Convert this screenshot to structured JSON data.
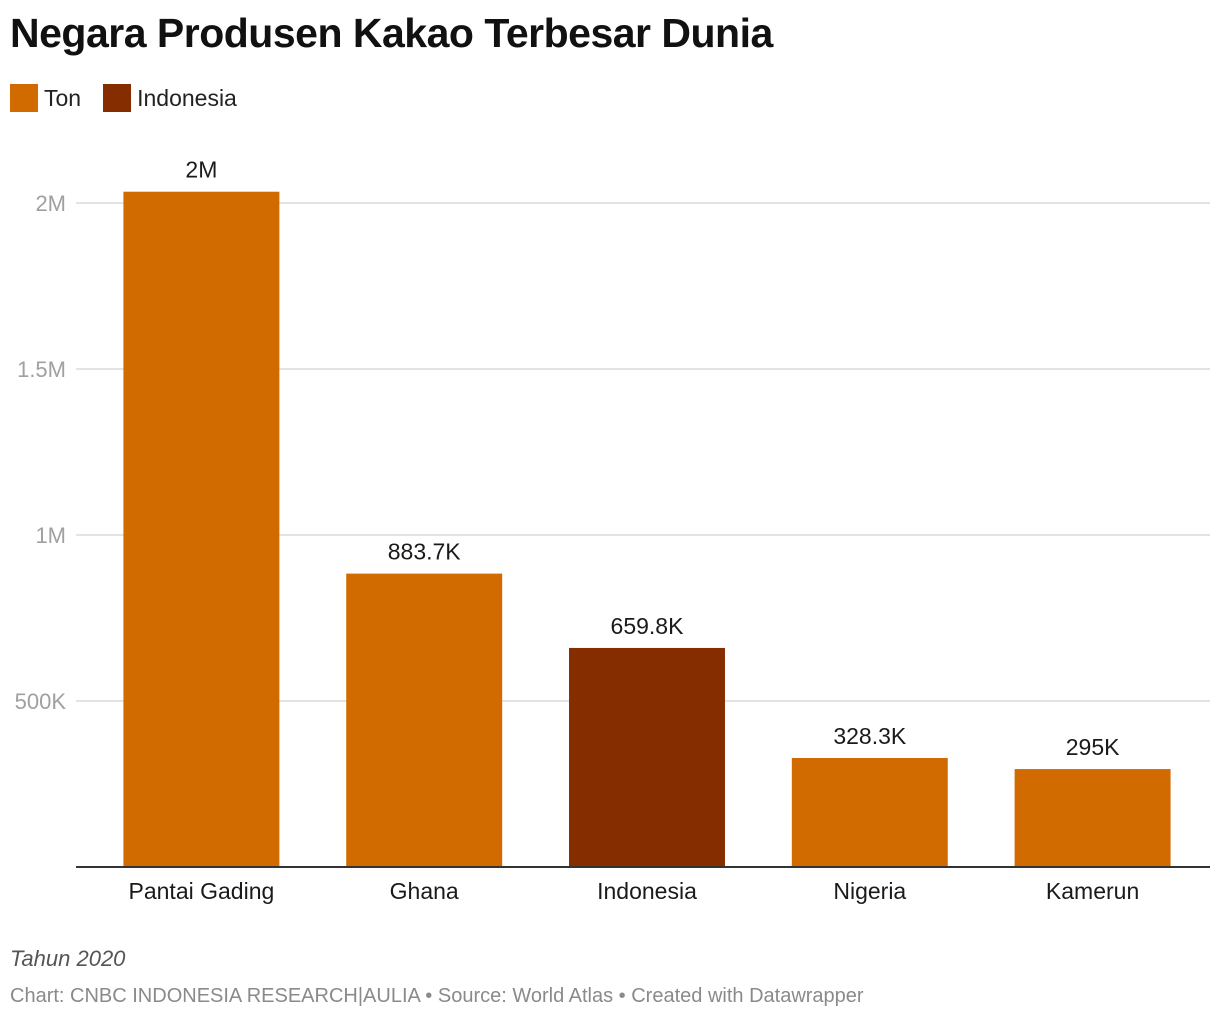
{
  "chart_data": {
    "type": "bar",
    "title": "Negara Produsen Kakao Terbesar Dunia",
    "legend": [
      {
        "name": "Ton",
        "color": "#d16b00"
      },
      {
        "name": "Indonesia",
        "color": "#862d00"
      }
    ],
    "legend_placement": "top-left",
    "categories": [
      "Pantai Gading",
      "Ghana",
      "Indonesia",
      "Nigeria",
      "Kamerun"
    ],
    "values": [
      2034000,
      883700,
      659800,
      328300,
      295000
    ],
    "value_labels": [
      "2M",
      "883.7K",
      "659.8K",
      "328.3K",
      "295K"
    ],
    "highlight": [
      false,
      false,
      true,
      false,
      false
    ],
    "colors": {
      "default": "#d16b00",
      "highlight": "#862d00"
    },
    "yticks": [
      {
        "value": 500000,
        "label": "500K"
      },
      {
        "value": 1000000,
        "label": "1M"
      },
      {
        "value": 1500000,
        "label": "1.5M"
      },
      {
        "value": 2000000,
        "label": "2M"
      }
    ],
    "ylim": [
      0,
      2000000
    ],
    "grid": true,
    "xlabel": "",
    "ylabel": "",
    "notes": "Tahun 2020",
    "credit": "Chart: CNBC INDONESIA RESEARCH|AULIA • Source: World Atlas • Created with Datawrapper"
  }
}
